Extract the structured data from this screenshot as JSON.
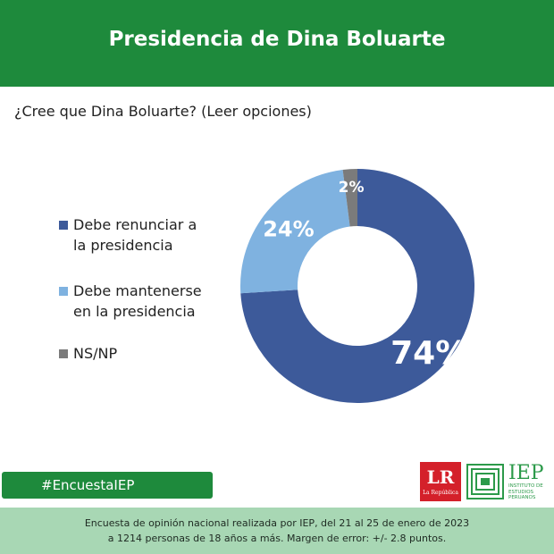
{
  "header": {
    "title": "Presidencia de Dina Boluarte"
  },
  "question": "¿Cree que Dina Boluarte? (Leer opciones)",
  "colors": {
    "green": "#1e8a3c",
    "footer_bg": "#a8d7b4"
  },
  "chart_data": {
    "type": "pie",
    "donut": true,
    "categories": [
      "Debe renunciar a la presidencia",
      "Debe mantenerse en la presidencia",
      "NS/NP"
    ],
    "values": [
      74,
      24,
      2
    ],
    "labels": [
      "74%",
      "24%",
      "2%"
    ],
    "colors": [
      "#3d5a9a",
      "#7fb2e0",
      "#7b7b7b"
    ],
    "legend_position": "left"
  },
  "legend": [
    {
      "line1": "Debe renunciar a",
      "line2": "la presidencia"
    },
    {
      "line1": "Debe mantenerse",
      "line2": "en la presidencia"
    },
    {
      "line1": "NS/NP",
      "line2": ""
    }
  ],
  "hashtag": "#EncuestaIEP",
  "footer": {
    "line1": "Encuesta de opinión nacional realizada por IEP, del 21 al 25 de enero de 2023",
    "line2": "a 1214 personas de 18 años a más. Margen de error: +/- 2.8 puntos."
  },
  "logos": {
    "lr": {
      "main": "LR",
      "sub": "La República"
    },
    "iep": {
      "main": "IEP",
      "line1": "INSTITUTO DE",
      "line2": "ESTUDIOS",
      "line3": "PERUANOS",
      "icon": "iep-square-spiral-icon"
    }
  }
}
